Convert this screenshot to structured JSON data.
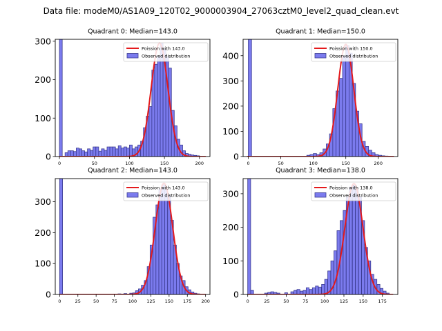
{
  "figure": {
    "suptitle": "Data file: modeM0/AS1A09_120T02_9000003904_27063cztM0_level2_quad_clean.evt"
  },
  "colors": {
    "bar_fill": "#7b7bee",
    "bar_edge": "#3a3a90",
    "curve": "#e41a1c",
    "axis": "#000000",
    "background": "#ffffff"
  },
  "chart_data": [
    {
      "type": "bar",
      "title": "Quadrant 0: Median=143.0",
      "xlabel": "",
      "ylabel": "",
      "xlim": [
        -6,
        215
      ],
      "ylim": [
        0,
        305
      ],
      "xticks": [
        0,
        50,
        100,
        150,
        200
      ],
      "yticks": [
        0,
        100,
        200,
        300
      ],
      "bin_width": 4,
      "bins_start": [
        0,
        8,
        12,
        16,
        20,
        24,
        28,
        32,
        36,
        40,
        44,
        48,
        52,
        56,
        60,
        64,
        68,
        72,
        76,
        80,
        84,
        88,
        92,
        96,
        100,
        104,
        108,
        112,
        116,
        120,
        124,
        128,
        132,
        136,
        140,
        144,
        148,
        152,
        156,
        160,
        164,
        168,
        172,
        176,
        180,
        184,
        188,
        192,
        196,
        200,
        204
      ],
      "counts": [
        305,
        10,
        15,
        15,
        13,
        22,
        20,
        15,
        12,
        20,
        16,
        25,
        25,
        14,
        20,
        16,
        25,
        25,
        25,
        20,
        28,
        22,
        25,
        22,
        30,
        20,
        25,
        30,
        40,
        75,
        105,
        130,
        225,
        240,
        260,
        295,
        280,
        260,
        230,
        120,
        80,
        45,
        30,
        15,
        8,
        6,
        4,
        3,
        2,
        1,
        1
      ],
      "curve": {
        "label": "Poission with 143.0",
        "mean": 143,
        "peak": 295
      },
      "legend": {
        "position": "top-right",
        "entries": [
          "Poission with 143.0",
          "Observed distribution"
        ]
      }
    },
    {
      "type": "bar",
      "title": "Quadrant 1: Median=150.0",
      "xlabel": "",
      "ylabel": "",
      "xlim": [
        -8,
        230
      ],
      "ylim": [
        0,
        465
      ],
      "xticks": [
        0,
        50,
        100,
        150,
        200
      ],
      "yticks": [
        0,
        100,
        200,
        300,
        400
      ],
      "bin_width": 5,
      "bins_start": [
        0,
        90,
        95,
        100,
        105,
        110,
        115,
        120,
        125,
        130,
        135,
        140,
        145,
        150,
        155,
        160,
        165,
        170,
        175,
        180,
        185,
        190,
        195,
        200,
        205,
        210
      ],
      "counts": [
        465,
        5,
        8,
        12,
        8,
        15,
        30,
        50,
        90,
        190,
        260,
        310,
        400,
        440,
        410,
        290,
        180,
        130,
        60,
        40,
        25,
        15,
        8,
        5,
        3,
        2
      ],
      "curve": {
        "label": "Poission with 150.0",
        "mean": 150,
        "peak": 445
      },
      "legend": {
        "position": "top-right",
        "entries": [
          "Poission with 150.0",
          "Observed distribution"
        ]
      }
    },
    {
      "type": "bar",
      "title": "Quadrant 2: Median=143.0",
      "xlabel": "",
      "ylabel": "",
      "xlim": [
        -6,
        206
      ],
      "ylim": [
        0,
        375
      ],
      "xticks": [
        0,
        25,
        50,
        75,
        100,
        125,
        150,
        175,
        200
      ],
      "yticks": [
        0,
        100,
        200,
        300
      ],
      "bin_width": 4,
      "bins_start": [
        0,
        80,
        88,
        96,
        100,
        104,
        108,
        112,
        116,
        120,
        124,
        128,
        132,
        136,
        140,
        144,
        148,
        152,
        156,
        160,
        164,
        168,
        172,
        176,
        180,
        184,
        188,
        192
      ],
      "counts": [
        375,
        2,
        3,
        4,
        5,
        12,
        18,
        30,
        45,
        90,
        160,
        250,
        290,
        340,
        355,
        340,
        320,
        240,
        160,
        100,
        60,
        45,
        25,
        15,
        8,
        4,
        2,
        1
      ],
      "curve": {
        "label": "Poission with 143.0",
        "mean": 143,
        "peak": 360
      },
      "legend": {
        "position": "top-right",
        "entries": [
          "Poission with 143.0",
          "Observed distribution"
        ]
      }
    },
    {
      "type": "bar",
      "title": "Quadrant 3: Median=138.0",
      "xlabel": "",
      "ylabel": "",
      "xlim": [
        -6,
        195
      ],
      "ylim": [
        0,
        345
      ],
      "xticks": [
        0,
        25,
        50,
        75,
        100,
        125,
        150,
        175
      ],
      "yticks": [
        0,
        100,
        200,
        300
      ],
      "bin_width": 3.8,
      "bins_start": [
        0,
        3.8,
        22,
        26,
        30,
        34,
        38,
        48,
        56,
        60,
        64,
        68,
        72,
        76,
        80,
        84,
        88,
        92,
        96,
        100,
        104,
        108,
        112,
        116,
        120,
        124,
        128,
        132,
        136,
        140,
        144,
        148,
        152,
        156,
        160,
        164,
        168,
        172,
        176,
        180
      ],
      "counts": [
        345,
        12,
        4,
        6,
        8,
        6,
        4,
        5,
        8,
        12,
        15,
        10,
        12,
        20,
        15,
        20,
        25,
        22,
        30,
        45,
        70,
        100,
        130,
        190,
        220,
        250,
        290,
        320,
        325,
        310,
        290,
        220,
        140,
        100,
        60,
        45,
        30,
        18,
        10,
        4
      ],
      "curve": {
        "label": "Poission with 138.0",
        "mean": 138,
        "peak": 330
      },
      "legend": {
        "position": "top-right",
        "entries": [
          "Poission with 138.0",
          "Observed distribution"
        ]
      }
    }
  ]
}
